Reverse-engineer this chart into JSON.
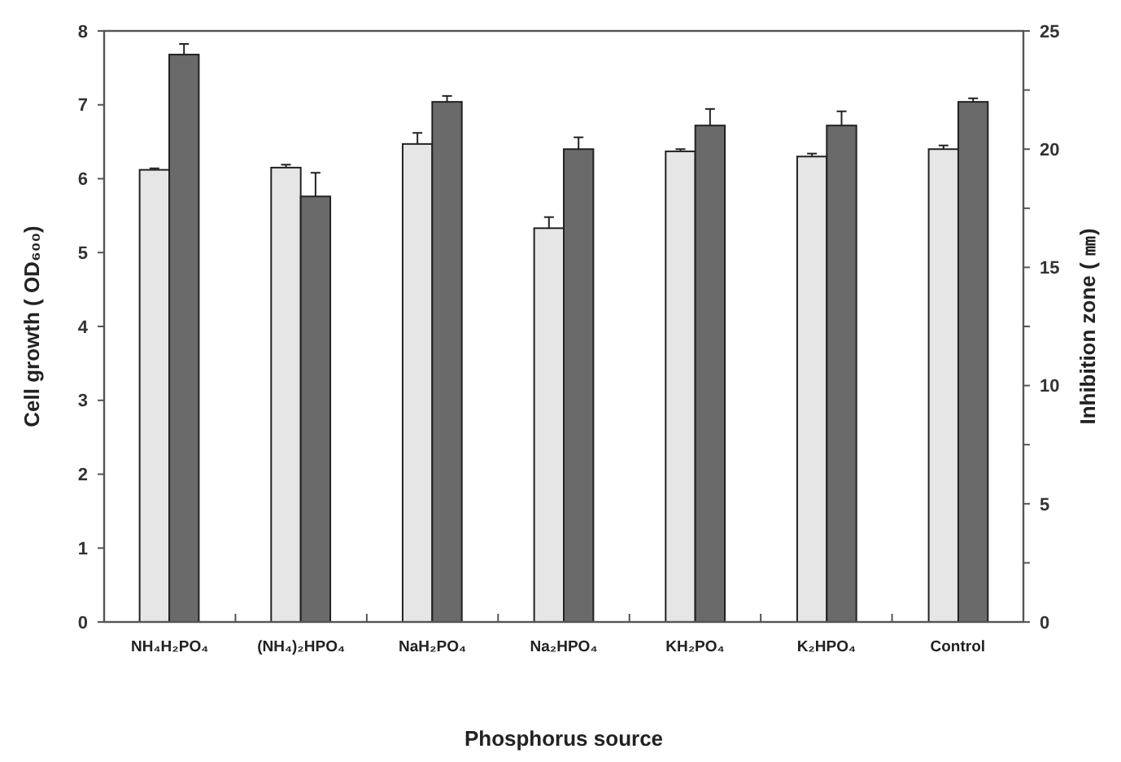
{
  "chart_data": {
    "type": "bar",
    "xlabel": "Phosphorus source",
    "ylabel": "Cell growth ( OD₆₀₀)",
    "y2label": "Inhibition zone ( ㎜)",
    "categories": [
      "NH₄H₂PO₄",
      "(NH₄)₂HPO₄",
      "NaH₂PO₄",
      "Na₂HPO₄",
      "KH₂PO₄",
      "K₂HPO₄",
      "Control"
    ],
    "series": [
      {
        "color": "#e6e6e6",
        "values": [
          6.12,
          6.15,
          6.47,
          5.33,
          6.37,
          6.3,
          6.4
        ],
        "errors": [
          0.02,
          0.04,
          0.15,
          0.15,
          0.03,
          0.04,
          0.05
        ]
      },
      {
        "color": "#6a6a6a",
        "axis": "y2",
        "values": [
          24,
          18,
          22,
          20,
          21,
          21,
          22
        ],
        "errors": [
          0.45,
          1,
          0.25,
          0.5,
          0.7,
          0.6,
          0.15
        ]
      }
    ],
    "ylim": [
      0,
      8
    ],
    "yticks": [
      0,
      1,
      2,
      3,
      4,
      5,
      6,
      7,
      8
    ],
    "y2lim": [
      0,
      25
    ],
    "y2ticks": [
      0,
      {
        "value": 2.5,
        "label": null
      },
      5,
      {
        "value": 7.5,
        "label": null
      },
      10,
      {
        "value": 12.5,
        "label": null
      },
      15,
      {
        "value": 17.5,
        "label": null
      },
      20,
      {
        "value": 22.5,
        "label": null
      },
      25
    ],
    "grid": false
  }
}
